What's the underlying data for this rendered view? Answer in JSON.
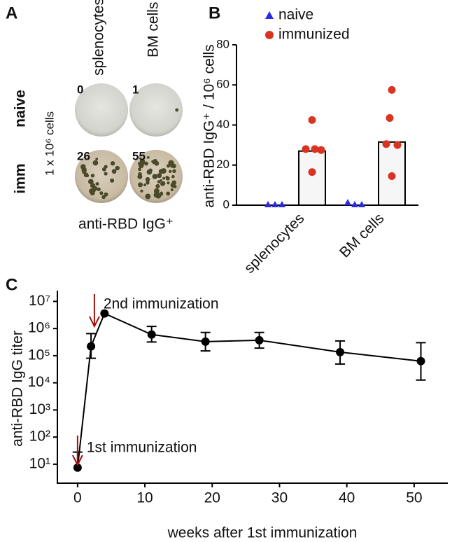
{
  "panel_a": {
    "label": "A",
    "columns": [
      "splenocytes",
      "BM cells"
    ],
    "rows": [
      "naive",
      "imm"
    ],
    "side_label": "1 x 10⁶ cells",
    "counts": [
      [
        0,
        1
      ],
      [
        26,
        55
      ]
    ],
    "caption": "anti-RBD IgG⁺"
  },
  "chart_data": [
    {
      "type": "dot-bar",
      "panel": "B",
      "y_label": "anti-RBD IgG⁺ / 10⁶ cells",
      "categories": [
        "splenocytes",
        "BM cells"
      ],
      "bar_values": [
        27,
        31.5
      ],
      "series": [
        {
          "name": "naive",
          "color": "#2a2ae8",
          "marker": "triangle",
          "values": [
            [
              0,
              0,
              0
            ],
            [
              1,
              0,
              0
            ]
          ]
        },
        {
          "name": "immunized",
          "color": "#d93322",
          "marker": "circle",
          "values": [
            [
              42.5,
              28,
              27.5,
              28,
              16.5
            ],
            [
              57.5,
              43.5,
              30.5,
              30,
              14.5
            ]
          ]
        }
      ],
      "ylim": [
        0,
        80
      ],
      "yticks": [
        0,
        20,
        40,
        60,
        80
      ],
      "legend": "upper left"
    },
    {
      "type": "line",
      "panel": "C",
      "x_label": "weeks after 1st immunization",
      "y_label": "anti-RBD IgG titer",
      "log_y": true,
      "x": [
        0,
        2,
        4,
        11,
        19,
        27,
        39,
        51
      ],
      "series": [
        {
          "color": "#000000",
          "values": [
            7.5,
            220000,
            3600000,
            600000,
            330000,
            370000,
            135000,
            63000
          ],
          "lower": [
            null,
            80000,
            null,
            320000,
            150000,
            190000,
            49000,
            12600
          ],
          "upper": [
            28,
            650000,
            null,
            1200000,
            720000,
            720000,
            350000,
            300000
          ]
        }
      ],
      "xlim": [
        -3,
        55
      ],
      "xticks": [
        0,
        10,
        20,
        30,
        40,
        50
      ],
      "ylim": [
        2,
        25000000
      ],
      "yticks": [
        {
          "value": 10,
          "label": "10¹"
        },
        {
          "value": 100,
          "label": "10²"
        },
        {
          "value": 1000,
          "label": "10³"
        },
        {
          "value": 10000,
          "label": "10⁴"
        },
        {
          "value": 100000,
          "label": "10⁵"
        },
        {
          "value": 1000000,
          "label": "10⁶"
        },
        {
          "value": 10000000,
          "label": "10⁷"
        }
      ],
      "annotations": [
        {
          "text": "1st immunization",
          "x": 0,
          "color": "#a01010"
        },
        {
          "text": "2nd immunization",
          "x": 2.5,
          "color": "#a01010"
        }
      ]
    }
  ]
}
